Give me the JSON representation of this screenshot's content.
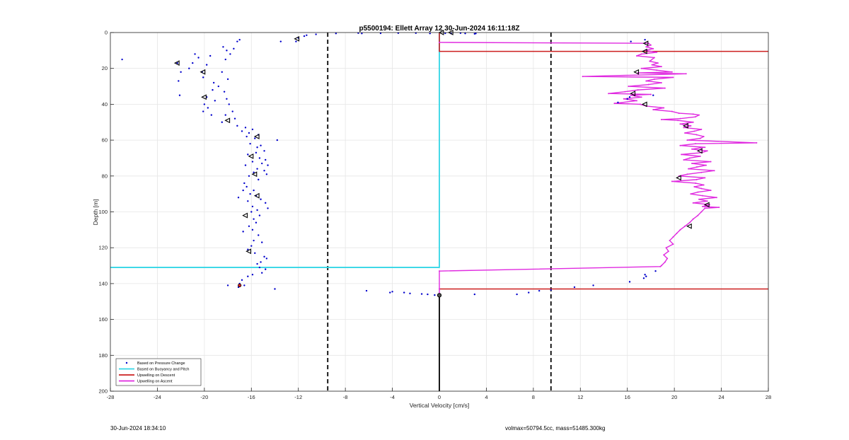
{
  "footer": {
    "timestamp": "30-Jun-2024 18:34:10",
    "params": "volmax=50794.5cc, mass=51485.300kg"
  },
  "colors": {
    "pressure": "#0000cc",
    "buoyancy": "#33d6e6",
    "descent": "#cc1f1f",
    "ascent": "#e02ae0",
    "reference": "#000000",
    "grid": "#e6e6e6"
  },
  "chart_data": {
    "type": "scatter",
    "title": "p5500194: Ellett Array 12 30-Jun-2024 16:11:18Z",
    "xlabel": "Vertical Velocity [cm/s]",
    "ylabel": "Depth [m]",
    "xlim": [
      -28,
      28
    ],
    "ylim": [
      0,
      200
    ],
    "y_reversed": true,
    "grid": true,
    "xticks": [
      -28,
      -24,
      -20,
      -16,
      -12,
      -8,
      -4,
      0,
      4,
      8,
      12,
      16,
      20,
      24,
      28
    ],
    "yticks": [
      0,
      20,
      40,
      60,
      80,
      100,
      120,
      140,
      160,
      180,
      200
    ],
    "legend": {
      "position": "bottom-left",
      "entries": [
        "Based on Pressure Change",
        "Based on Buoyancy and Pitch",
        "Upwelling on Descent",
        "Upwelling on Ascent"
      ]
    },
    "reference_lines": {
      "dashed_x": [
        -9.5,
        9.5
      ],
      "zero_line": {
        "x": 0,
        "y_from": 146,
        "y_to": 200
      }
    },
    "series": [
      {
        "name": "Based on Pressure Change",
        "points": [
          [
            -27,
            15
          ],
          [
            -22.3,
            17
          ],
          [
            -22,
            22
          ],
          [
            -22.2,
            27
          ],
          [
            -22.1,
            35
          ],
          [
            -21.3,
            20
          ],
          [
            -21,
            17
          ],
          [
            -20.8,
            12
          ],
          [
            -20.5,
            14
          ],
          [
            -20.2,
            22
          ],
          [
            -20.1,
            25
          ],
          [
            -19.8,
            18
          ],
          [
            -19.5,
            13
          ],
          [
            -19.2,
            28
          ],
          [
            -19.3,
            32
          ],
          [
            -19.8,
            36
          ],
          [
            -20,
            40
          ],
          [
            -19.7,
            42
          ],
          [
            -20.1,
            44
          ],
          [
            -19.4,
            46
          ],
          [
            -19.1,
            38
          ],
          [
            -18.8,
            30
          ],
          [
            -18.5,
            22
          ],
          [
            -18.2,
            15
          ],
          [
            -18.4,
            8
          ],
          [
            -18.1,
            10
          ],
          [
            -17.8,
            12
          ],
          [
            -17.5,
            9
          ],
          [
            -17.2,
            5
          ],
          [
            -17,
            4
          ],
          [
            -18,
            26
          ],
          [
            -18.3,
            33
          ],
          [
            -18.1,
            37
          ],
          [
            -17.9,
            40
          ],
          [
            -17.6,
            44
          ],
          [
            -17.4,
            48
          ],
          [
            -18.2,
            46
          ],
          [
            -18.5,
            50
          ],
          [
            -17.2,
            52
          ],
          [
            -16.8,
            55
          ],
          [
            -16.5,
            53
          ],
          [
            -16.2,
            56
          ],
          [
            -15.9,
            54
          ],
          [
            -16.4,
            58
          ],
          [
            -15.7,
            59
          ],
          [
            -15.4,
            57
          ],
          [
            -16.1,
            62
          ],
          [
            -15.5,
            64
          ],
          [
            -15.2,
            63
          ],
          [
            -14.9,
            66
          ],
          [
            -15.6,
            67
          ],
          [
            -16.3,
            68
          ],
          [
            -15.3,
            70
          ],
          [
            -14.8,
            71
          ],
          [
            -15.9,
            72
          ],
          [
            -16.5,
            74
          ],
          [
            -15.1,
            73
          ],
          [
            -14.6,
            74
          ],
          [
            -15.5,
            76
          ],
          [
            -14.9,
            77
          ],
          [
            -15.8,
            78
          ],
          [
            -16.2,
            80
          ],
          [
            -14.7,
            79
          ],
          [
            -15.4,
            82
          ],
          [
            -16.6,
            84
          ],
          [
            -16.4,
            86
          ],
          [
            -16.7,
            88
          ],
          [
            -15.8,
            88
          ],
          [
            -16.1,
            90
          ],
          [
            -17.1,
            92
          ],
          [
            -15.6,
            91
          ],
          [
            -15.2,
            93
          ],
          [
            -14.8,
            95
          ],
          [
            -16.3,
            94
          ],
          [
            -15.9,
            97
          ],
          [
            -14.6,
            98
          ],
          [
            -15.5,
            99
          ],
          [
            -16,
            100
          ],
          [
            -15.3,
            102
          ],
          [
            -15.8,
            104
          ],
          [
            -15.6,
            106
          ],
          [
            -16.2,
            108
          ],
          [
            -15.9,
            110
          ],
          [
            -16.7,
            111
          ],
          [
            -15.4,
            113
          ],
          [
            -15.8,
            116
          ],
          [
            -15.1,
            117
          ],
          [
            -16,
            119
          ],
          [
            -16.3,
            121
          ],
          [
            -15.7,
            123
          ],
          [
            -14.9,
            125
          ],
          [
            -14.7,
            126
          ],
          [
            -15.2,
            128
          ],
          [
            -15.5,
            129
          ],
          [
            -15.3,
            131
          ],
          [
            -14.8,
            132
          ],
          [
            -15.1,
            134
          ],
          [
            -15.9,
            135
          ],
          [
            -16.3,
            136
          ],
          [
            -16.8,
            138
          ],
          [
            -17,
            140
          ],
          [
            -17.1,
            142
          ],
          [
            -16.6,
            141
          ],
          [
            -18,
            141
          ],
          [
            -14,
            143
          ],
          [
            -13.8,
            60
          ],
          [
            -13.5,
            5
          ],
          [
            -12.2,
            5
          ],
          [
            -12,
            3
          ],
          [
            -11.5,
            2
          ],
          [
            -11.3,
            1.5
          ],
          [
            -10.5,
            1
          ],
          [
            -8.8,
            0.5
          ],
          [
            -6.9,
            0.3
          ],
          [
            -6.6,
            0.5
          ],
          [
            -5,
            0.4
          ],
          [
            -3.5,
            0.3
          ],
          [
            -2,
            0.3
          ],
          [
            -0.8,
            0.5
          ],
          [
            0.5,
            0.4
          ],
          [
            1,
            0.5
          ],
          [
            1.8,
            0.3
          ],
          [
            2.2,
            0.5
          ],
          [
            3.1,
            0.5
          ],
          [
            3,
            0.7
          ],
          [
            16.3,
            5
          ],
          [
            17.5,
            4
          ],
          [
            18.2,
            35
          ],
          [
            16,
            37
          ],
          [
            16.2,
            36
          ],
          [
            15.2,
            39
          ],
          [
            18.4,
            133
          ],
          [
            17.5,
            135
          ],
          [
            17.6,
            136
          ],
          [
            17.4,
            137
          ],
          [
            16.2,
            139
          ],
          [
            13.1,
            141
          ],
          [
            11.5,
            142
          ],
          [
            8.5,
            144
          ],
          [
            6.6,
            146
          ],
          [
            7.6,
            145
          ],
          [
            9.5,
            143.5
          ],
          [
            3,
            146
          ],
          [
            -1,
            146
          ],
          [
            -1.5,
            145.8
          ],
          [
            -2.5,
            145.5
          ],
          [
            -3,
            145
          ],
          [
            -4,
            144.5
          ],
          [
            -4.2,
            145
          ],
          [
            -6.2,
            144
          ],
          [
            -0.4,
            146.4
          ]
        ]
      },
      {
        "name": "Based on Buoyancy and Pitch",
        "points": [
          [
            0,
            0
          ],
          [
            0,
            131
          ],
          [
            -28,
            131
          ]
        ]
      },
      {
        "name": "Upwelling on Descent",
        "segments": [
          [
            [
              0,
              0
            ],
            [
              0,
              10.5
            ],
            [
              28,
              10.5
            ]
          ],
          [
            [
              0,
              143
            ],
            [
              28,
              143
            ]
          ]
        ]
      },
      {
        "name": "Upwelling on Ascent",
        "points": [
          [
            0,
            5.5
          ],
          [
            17.8,
            6
          ],
          [
            18,
            7
          ],
          [
            17.6,
            8
          ],
          [
            18.2,
            9
          ],
          [
            17.5,
            10
          ],
          [
            18.5,
            11
          ],
          [
            17.2,
            12
          ],
          [
            16.8,
            13
          ],
          [
            18.3,
            14
          ],
          [
            17.9,
            16
          ],
          [
            18.6,
            17
          ],
          [
            18.1,
            18
          ],
          [
            18.9,
            19
          ],
          [
            17.2,
            20
          ],
          [
            18.5,
            21
          ],
          [
            19.8,
            22
          ],
          [
            16.9,
            22.5
          ],
          [
            21,
            23
          ],
          [
            12.2,
            24.5
          ],
          [
            19.9,
            25
          ],
          [
            18.3,
            26
          ],
          [
            17.6,
            27
          ],
          [
            18.9,
            28
          ],
          [
            17.8,
            29
          ],
          [
            16.1,
            30
          ],
          [
            19.2,
            31
          ],
          [
            16.9,
            32
          ],
          [
            15.8,
            33
          ],
          [
            14.4,
            34
          ],
          [
            18,
            34.5
          ],
          [
            16.3,
            35
          ],
          [
            17.2,
            36
          ],
          [
            15.7,
            37
          ],
          [
            16.8,
            38
          ],
          [
            14.9,
            39.5
          ],
          [
            17.1,
            40
          ],
          [
            17.6,
            41
          ],
          [
            19.1,
            42
          ],
          [
            18.2,
            43
          ],
          [
            19.8,
            44
          ],
          [
            20.4,
            45
          ],
          [
            21.6,
            45.5
          ],
          [
            22.1,
            46
          ],
          [
            21.8,
            47
          ],
          [
            20.5,
            48
          ],
          [
            18.9,
            48.5
          ],
          [
            20.3,
            49
          ],
          [
            21.6,
            50
          ],
          [
            20.5,
            51
          ],
          [
            21.4,
            52
          ],
          [
            20.8,
            53
          ],
          [
            22.3,
            54
          ],
          [
            21.7,
            55
          ],
          [
            20.9,
            56
          ],
          [
            21.9,
            57
          ],
          [
            22.5,
            58
          ],
          [
            22.2,
            59
          ],
          [
            21.1,
            60
          ],
          [
            27,
            61.5
          ],
          [
            21.8,
            62
          ],
          [
            20.5,
            63
          ],
          [
            22.6,
            64
          ],
          [
            21.5,
            65
          ],
          [
            22.8,
            66
          ],
          [
            22.3,
            67
          ],
          [
            20.6,
            68
          ],
          [
            22.2,
            69
          ],
          [
            21.3,
            70
          ],
          [
            20.8,
            71
          ],
          [
            23.1,
            72
          ],
          [
            21.5,
            73
          ],
          [
            22.7,
            74
          ],
          [
            21.9,
            75
          ],
          [
            21.2,
            76
          ],
          [
            23.4,
            77
          ],
          [
            22.3,
            78
          ],
          [
            21.1,
            79
          ],
          [
            20.4,
            80
          ],
          [
            22.6,
            81
          ],
          [
            21.9,
            82
          ],
          [
            19.8,
            83
          ],
          [
            21.8,
            84
          ],
          [
            22.5,
            85
          ],
          [
            21.7,
            86
          ],
          [
            22.3,
            87
          ],
          [
            23.1,
            88
          ],
          [
            22,
            89
          ],
          [
            21.4,
            90
          ],
          [
            22.4,
            91
          ],
          [
            23.6,
            92
          ],
          [
            22.1,
            93
          ],
          [
            22.8,
            94
          ],
          [
            21.6,
            95
          ],
          [
            23,
            96
          ],
          [
            22.4,
            97
          ],
          [
            23.8,
            97.5
          ],
          [
            22.6,
            98
          ],
          [
            22.3,
            100
          ],
          [
            22,
            102
          ],
          [
            21.6,
            104
          ],
          [
            21.3,
            106
          ],
          [
            20.9,
            108
          ],
          [
            20.5,
            110
          ],
          [
            20.2,
            112
          ],
          [
            19.9,
            114
          ],
          [
            19.6,
            116
          ],
          [
            19.9,
            118
          ],
          [
            19.3,
            120
          ],
          [
            19.5,
            122
          ],
          [
            19.1,
            124
          ],
          [
            19.4,
            126
          ],
          [
            19.2,
            128
          ],
          [
            18.9,
            130
          ],
          [
            18.8,
            130.5
          ],
          [
            0,
            133
          ],
          [
            0,
            143
          ],
          [
            0,
            146
          ]
        ]
      }
    ],
    "markers": {
      "triangles_left": [
        [
          -22.3,
          17
        ],
        [
          -20.1,
          22
        ],
        [
          -20,
          36
        ],
        [
          -18,
          49
        ],
        [
          -15.5,
          58
        ],
        [
          -16,
          69
        ],
        [
          -15.7,
          79
        ],
        [
          -15.5,
          91
        ],
        [
          -16.5,
          102
        ],
        [
          -16.2,
          122
        ],
        [
          -12.1,
          3.5
        ],
        [
          0.2,
          0
        ],
        [
          1,
          0
        ],
        [
          17.6,
          6
        ],
        [
          17.5,
          10.5
        ],
        [
          16.8,
          22
        ],
        [
          16.5,
          34
        ],
        [
          17.5,
          40
        ],
        [
          21,
          52
        ],
        [
          22.2,
          66
        ],
        [
          20.4,
          81
        ],
        [
          22.8,
          96
        ],
        [
          21.3,
          108
        ]
      ],
      "black_circle": [
        [
          0,
          146.5
        ]
      ],
      "red_circle": [
        [
          -17,
          141
        ]
      ]
    }
  }
}
